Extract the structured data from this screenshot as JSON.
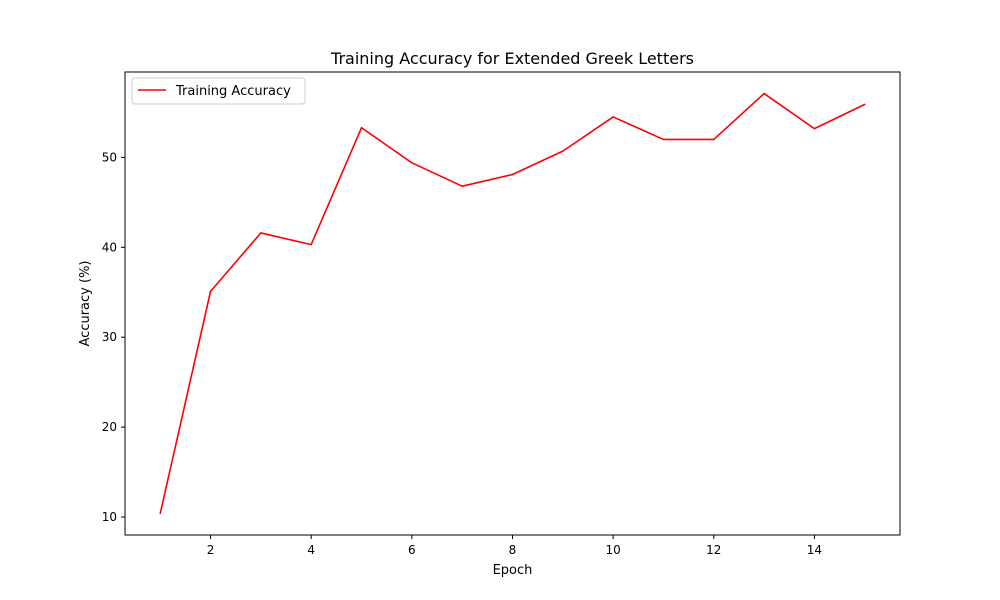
{
  "chart_data": {
    "type": "line",
    "title": "Training Accuracy for Extended Greek Letters",
    "xlabel": "Epoch",
    "ylabel": "Accuracy (%)",
    "x": [
      1,
      2,
      3,
      4,
      5,
      6,
      7,
      8,
      9,
      10,
      11,
      12,
      13,
      14,
      15
    ],
    "series": [
      {
        "name": "Training Accuracy",
        "color": "#ff0000",
        "values": [
          10.4,
          35.1,
          41.6,
          40.3,
          53.3,
          49.4,
          46.8,
          48.1,
          50.7,
          54.5,
          52.0,
          52.0,
          57.1,
          53.2,
          55.9
        ]
      }
    ],
    "xlim": [
      0.3,
      15.7
    ],
    "ylim": [
      8.0,
      59.5
    ],
    "xticks": [
      2,
      4,
      6,
      8,
      10,
      12,
      14
    ],
    "yticks": [
      10,
      20,
      30,
      40,
      50
    ],
    "grid": false,
    "legend_position": "top-left"
  }
}
